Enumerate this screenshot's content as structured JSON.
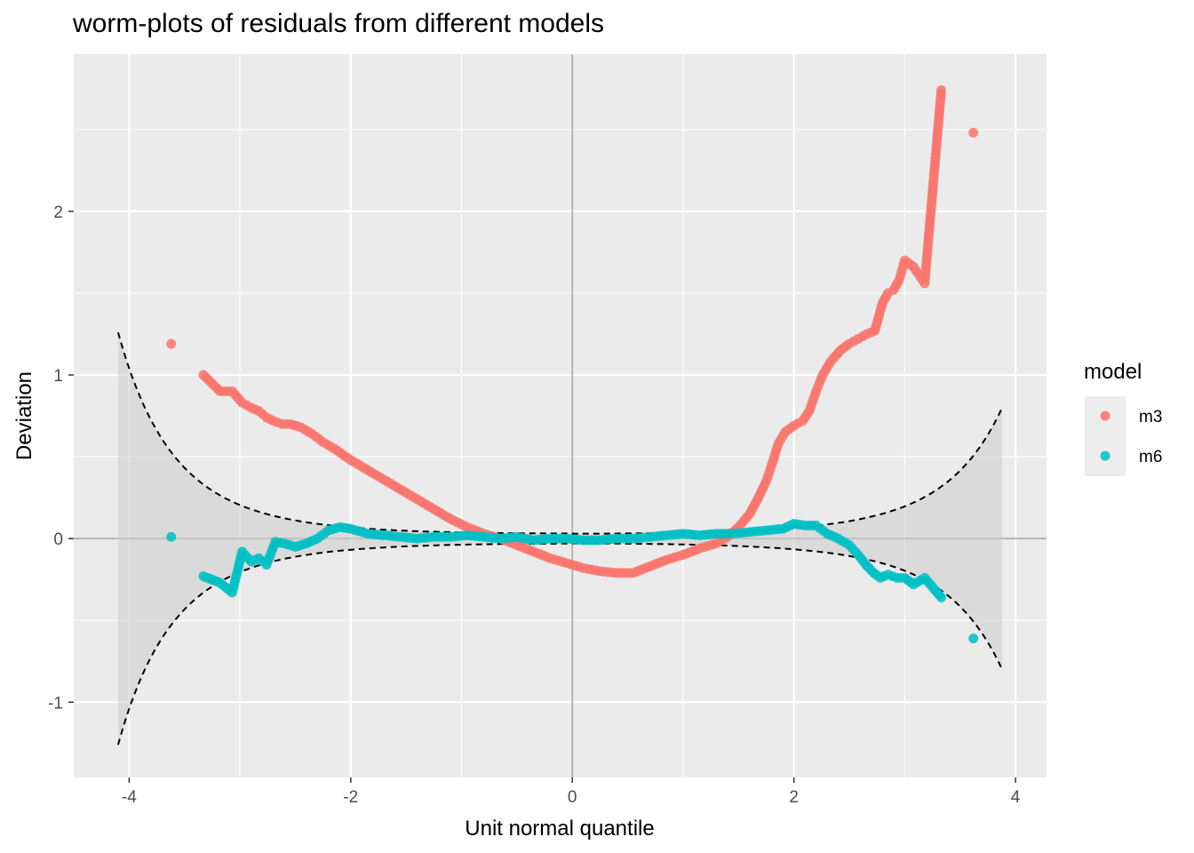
{
  "chart_data": {
    "type": "scatter",
    "title": "worm-plots of residuals from different models",
    "xlabel": "Unit normal quantile",
    "ylabel": "Deviation",
    "xlim": [
      -4.5,
      4.28
    ],
    "ylim": [
      -1.46,
      2.96
    ],
    "x_ticks": [
      -4,
      -2,
      0,
      2,
      4
    ],
    "x_tick_labels": [
      "-4",
      "-2",
      "0",
      "2",
      "4"
    ],
    "y_ticks": [
      -1,
      0,
      1,
      2
    ],
    "y_tick_labels": [
      "-1",
      "0",
      "1",
      "2"
    ],
    "grid": true,
    "reference_lines": {
      "x": 0,
      "y": 0
    },
    "legend": {
      "title": "model",
      "placement": "right",
      "entries": [
        {
          "label": "m3",
          "color": "#F8766D"
        },
        {
          "label": "m6",
          "color": "#00BFC4"
        }
      ]
    },
    "confidence_band": {
      "style": "dashed",
      "x_range": [
        -4.1,
        3.88
      ],
      "upper_at_extremes": [
        1.26,
        0.8
      ],
      "lower_at_extremes": [
        -1.26,
        -0.8
      ]
    },
    "series": [
      {
        "name": "m3",
        "color": "#F8766D",
        "points": [
          [
            -3.62,
            1.19
          ],
          [
            -3.33,
            1.0
          ],
          [
            -3.18,
            0.9
          ],
          [
            -3.07,
            0.9
          ],
          [
            -2.98,
            0.83
          ],
          [
            -2.9,
            0.8
          ],
          [
            -2.83,
            0.78
          ],
          [
            -2.76,
            0.74
          ],
          [
            -2.7,
            0.72
          ],
          [
            -2.62,
            0.7
          ],
          [
            -2.55,
            0.7
          ],
          [
            -2.45,
            0.68
          ],
          [
            -2.35,
            0.64
          ],
          [
            -2.25,
            0.59
          ],
          [
            -2.15,
            0.55
          ],
          [
            -2.0,
            0.48
          ],
          [
            -1.85,
            0.42
          ],
          [
            -1.7,
            0.36
          ],
          [
            -1.55,
            0.3
          ],
          [
            -1.4,
            0.24
          ],
          [
            -1.25,
            0.18
          ],
          [
            -1.1,
            0.12
          ],
          [
            -0.95,
            0.07
          ],
          [
            -0.8,
            0.03
          ],
          [
            -0.65,
            0.0
          ],
          [
            -0.5,
            -0.04
          ],
          [
            -0.35,
            -0.08
          ],
          [
            -0.2,
            -0.12
          ],
          [
            -0.05,
            -0.15
          ],
          [
            0.1,
            -0.18
          ],
          [
            0.25,
            -0.2
          ],
          [
            0.4,
            -0.21
          ],
          [
            0.55,
            -0.21
          ],
          [
            0.7,
            -0.17
          ],
          [
            0.85,
            -0.13
          ],
          [
            1.0,
            -0.1
          ],
          [
            1.15,
            -0.06
          ],
          [
            1.3,
            -0.03
          ],
          [
            1.4,
            0.01
          ],
          [
            1.5,
            0.07
          ],
          [
            1.6,
            0.15
          ],
          [
            1.68,
            0.25
          ],
          [
            1.75,
            0.35
          ],
          [
            1.8,
            0.45
          ],
          [
            1.86,
            0.58
          ],
          [
            1.92,
            0.65
          ],
          [
            2.0,
            0.69
          ],
          [
            2.08,
            0.72
          ],
          [
            2.14,
            0.78
          ],
          [
            2.2,
            0.9
          ],
          [
            2.26,
            1.0
          ],
          [
            2.33,
            1.08
          ],
          [
            2.42,
            1.15
          ],
          [
            2.5,
            1.19
          ],
          [
            2.58,
            1.22
          ],
          [
            2.66,
            1.25
          ],
          [
            2.73,
            1.27
          ],
          [
            2.8,
            1.44
          ],
          [
            2.85,
            1.5
          ],
          [
            2.9,
            1.52
          ],
          [
            2.95,
            1.58
          ],
          [
            3.0,
            1.7
          ],
          [
            3.08,
            1.66
          ],
          [
            3.18,
            1.56
          ],
          [
            3.33,
            2.74
          ],
          [
            3.62,
            2.48
          ]
        ]
      },
      {
        "name": "m6",
        "color": "#00BFC4",
        "points": [
          [
            -3.62,
            0.01
          ],
          [
            -3.33,
            -0.23
          ],
          [
            -3.18,
            -0.27
          ],
          [
            -3.07,
            -0.33
          ],
          [
            -2.98,
            -0.08
          ],
          [
            -2.9,
            -0.14
          ],
          [
            -2.83,
            -0.12
          ],
          [
            -2.76,
            -0.16
          ],
          [
            -2.68,
            -0.02
          ],
          [
            -2.6,
            -0.03
          ],
          [
            -2.5,
            -0.05
          ],
          [
            -2.4,
            -0.03
          ],
          [
            -2.3,
            0.0
          ],
          [
            -2.2,
            0.05
          ],
          [
            -2.1,
            0.07
          ],
          [
            -2.0,
            0.06
          ],
          [
            -1.85,
            0.03
          ],
          [
            -1.7,
            0.02
          ],
          [
            -1.55,
            0.01
          ],
          [
            -1.4,
            0.0
          ],
          [
            -1.25,
            0.01
          ],
          [
            -1.1,
            0.01
          ],
          [
            -0.95,
            0.02
          ],
          [
            -0.8,
            0.01
          ],
          [
            -0.65,
            0.0
          ],
          [
            -0.5,
            0.01
          ],
          [
            -0.35,
            -0.01
          ],
          [
            -0.2,
            0.0
          ],
          [
            -0.05,
            0.0
          ],
          [
            0.1,
            -0.01
          ],
          [
            0.25,
            -0.01
          ],
          [
            0.4,
            0.0
          ],
          [
            0.55,
            0.0
          ],
          [
            0.7,
            0.01
          ],
          [
            0.85,
            0.02
          ],
          [
            1.0,
            0.03
          ],
          [
            1.15,
            0.02
          ],
          [
            1.3,
            0.03
          ],
          [
            1.45,
            0.03
          ],
          [
            1.6,
            0.04
          ],
          [
            1.75,
            0.05
          ],
          [
            1.9,
            0.06
          ],
          [
            2.0,
            0.09
          ],
          [
            2.1,
            0.08
          ],
          [
            2.2,
            0.08
          ],
          [
            2.3,
            0.03
          ],
          [
            2.4,
            0.0
          ],
          [
            2.5,
            -0.04
          ],
          [
            2.58,
            -0.1
          ],
          [
            2.65,
            -0.16
          ],
          [
            2.72,
            -0.21
          ],
          [
            2.78,
            -0.24
          ],
          [
            2.85,
            -0.22
          ],
          [
            2.93,
            -0.24
          ],
          [
            3.0,
            -0.24
          ],
          [
            3.08,
            -0.28
          ],
          [
            3.18,
            -0.24
          ],
          [
            3.33,
            -0.36
          ],
          [
            3.62,
            -0.61
          ]
        ]
      }
    ]
  }
}
